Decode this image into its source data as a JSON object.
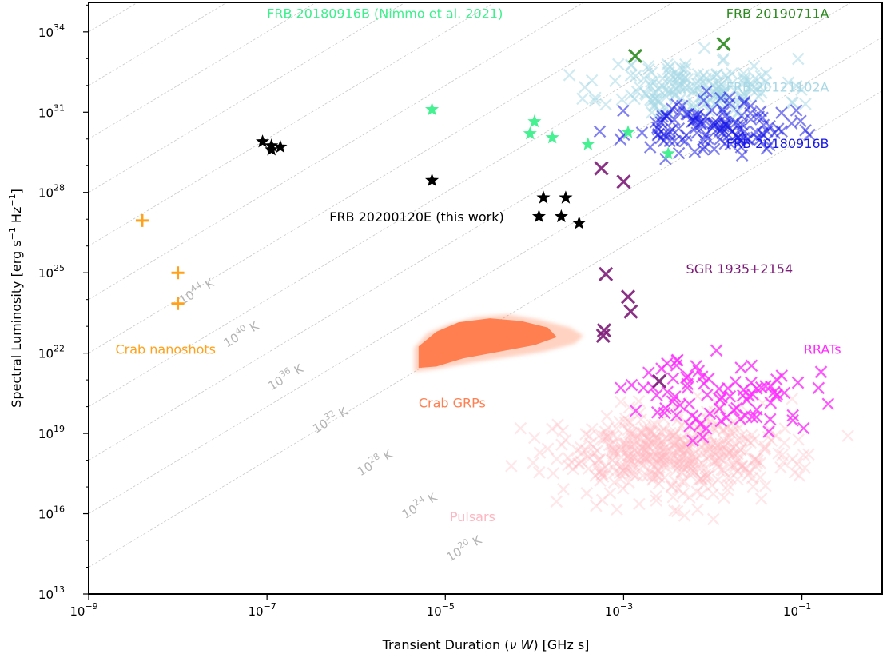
{
  "chart_data": {
    "type": "scatter",
    "xlabel": "Transient Duration (ν W) [GHz s]",
    "ylabel": "Spectral Luminosity [erg s⁻¹ Hz⁻¹]",
    "xscale": "log",
    "yscale": "log",
    "xlim_exp": [
      -9,
      -0.1
    ],
    "ylim_exp": [
      13,
      35.1
    ],
    "grid": false,
    "legend": "none (inline text labels)",
    "x_ticks": [
      {
        "exp": -9,
        "base": "10",
        "sup": "−9"
      },
      {
        "exp": -7,
        "base": "10",
        "sup": "−7"
      },
      {
        "exp": -5,
        "base": "10",
        "sup": "−5"
      },
      {
        "exp": -3,
        "base": "10",
        "sup": "−3"
      },
      {
        "exp": -1,
        "base": "10",
        "sup": "−1"
      }
    ],
    "y_ticks": [
      {
        "exp": 13,
        "base": "10",
        "sup": "13"
      },
      {
        "exp": 16,
        "base": "10",
        "sup": "16"
      },
      {
        "exp": 19,
        "base": "10",
        "sup": "19"
      },
      {
        "exp": 22,
        "base": "10",
        "sup": "22"
      },
      {
        "exp": 25,
        "base": "10",
        "sup": "25"
      },
      {
        "exp": 28,
        "base": "10",
        "sup": "28"
      },
      {
        "exp": 31,
        "base": "10",
        "sup": "31"
      },
      {
        "exp": 34,
        "base": "10",
        "sup": "34"
      }
    ],
    "isotherms": [
      {
        "label": "10",
        "sup": "20",
        "unit": "K",
        "tb_exp": 20
      },
      {
        "label": "10",
        "sup": "24",
        "unit": "K",
        "tb_exp": 24
      },
      {
        "label": "10",
        "sup": "28",
        "unit": "K",
        "tb_exp": 28
      },
      {
        "label": "10",
        "sup": "32",
        "unit": "K",
        "tb_exp": 32
      },
      {
        "label": "10",
        "sup": "36",
        "unit": "K",
        "tb_exp": 36
      },
      {
        "label": "10",
        "sup": "40",
        "unit": "K",
        "tb_exp": 40
      },
      {
        "label": "10",
        "sup": "44",
        "unit": "K",
        "tb_exp": 44
      }
    ],
    "series": [
      {
        "name": "FRB 20200120E (this work)",
        "marker": "star",
        "color": "#000000",
        "alpha": 1,
        "points": [
          [
            -7.05,
            29.9
          ],
          [
            -6.95,
            29.6
          ],
          [
            -6.85,
            29.7
          ],
          [
            -5.15,
            28.45
          ],
          [
            -3.9,
            27.8
          ],
          [
            -3.95,
            27.1
          ],
          [
            -3.7,
            27.1
          ],
          [
            -3.65,
            27.8
          ],
          [
            -3.5,
            26.85
          ],
          [
            -6.95,
            29.75
          ]
        ]
      },
      {
        "name": "FRB 20180916B (Nimmo et al. 2021)",
        "marker": "star",
        "color": "#3cf08c",
        "alpha": 0.95,
        "points": [
          [
            -5.15,
            31.1
          ],
          [
            -4.0,
            30.65
          ],
          [
            -4.05,
            30.2
          ],
          [
            -3.8,
            30.05
          ],
          [
            -3.4,
            29.8
          ],
          [
            -2.95,
            30.25
          ],
          [
            -2.5,
            29.45
          ]
        ]
      },
      {
        "name": "FRB 20190711A",
        "marker": "x",
        "color": "#2b8a1e",
        "alpha": 0.9,
        "points": [
          [
            -2.87,
            33.1
          ],
          [
            -1.88,
            33.55
          ]
        ]
      },
      {
        "name": "SGR 1935+2154",
        "marker": "x",
        "color": "#7d1b78",
        "alpha": 0.9,
        "points": [
          [
            -3.25,
            28.9
          ],
          [
            -3.0,
            28.4
          ],
          [
            -3.2,
            24.95
          ],
          [
            -2.95,
            24.1
          ],
          [
            -2.92,
            23.55
          ],
          [
            -3.22,
            22.85
          ],
          [
            -3.23,
            22.65
          ],
          [
            -2.6,
            20.95
          ]
        ]
      },
      {
        "name": "FRB 20121102A",
        "marker": "x",
        "color": "#a8d8e6",
        "alpha": 0.55,
        "cloud": {
          "cx": -2.2,
          "cy": 31.9,
          "sx": 0.5,
          "sy": 0.55,
          "n": 170,
          "seed": 11
        }
      },
      {
        "name": "FRB 20180916B",
        "marker": "x",
        "color": "#1a1ae6",
        "alpha": 0.55,
        "cloud": {
          "cx": -2.05,
          "cy": 30.4,
          "sx": 0.45,
          "sy": 0.45,
          "n": 130,
          "seed": 23
        }
      },
      {
        "name": "RRATs",
        "marker": "x",
        "color": "#ff2bff",
        "alpha": 0.8,
        "cloud": {
          "cx": -1.85,
          "cy": 20.4,
          "sx": 0.5,
          "sy": 0.7,
          "n": 85,
          "seed": 37
        }
      },
      {
        "name": "Pulsars",
        "marker": "x",
        "color": "#ffb6c1",
        "alpha": 0.35,
        "cloud": {
          "cx": -2.4,
          "cy": 18.2,
          "sx": 0.7,
          "sy": 0.8,
          "n": 480,
          "seed": 53
        }
      },
      {
        "name": "Crab GRPs",
        "marker": "blob",
        "color": "#ff7f50",
        "alpha": 1
      },
      {
        "name": "Crab nanoshots",
        "marker": "plus",
        "color": "#ffa11a",
        "alpha": 1,
        "points": [
          [
            -8.4,
            26.95
          ],
          [
            -8.0,
            25.0
          ],
          [
            -8.0,
            23.85
          ]
        ]
      }
    ],
    "labels": [
      {
        "key": "frb_nimmo",
        "text": "FRB 20180916B (Nimmo et al. 2021)",
        "color": "#3cf08c",
        "at": [
          -7.0,
          34.7
        ]
      },
      {
        "key": "frb_190711",
        "text": "FRB 20190711A",
        "color": "#2b8a1e",
        "at": [
          -1.85,
          34.7
        ]
      },
      {
        "key": "frb_121102",
        "text": "FRB 20121102A",
        "color": "#a8d8e6",
        "at": [
          -1.85,
          31.95
        ]
      },
      {
        "key": "frb_180916",
        "text": "FRB 20180916B",
        "color": "#1a1ae6",
        "at": [
          -1.85,
          29.85
        ]
      },
      {
        "key": "frb_200120",
        "text": "FRB 20200120E (this work)",
        "color": "#000000",
        "at": [
          -6.3,
          27.1
        ]
      },
      {
        "key": "sgr",
        "text": "SGR 1935+2154",
        "color": "#7d1b78",
        "at": [
          -2.3,
          25.15
        ]
      },
      {
        "key": "crab_nano",
        "text": "Crab nanoshots",
        "color": "#ffa11a",
        "at": [
          -8.7,
          22.15
        ]
      },
      {
        "key": "crab_grp",
        "text": "Crab GRPs",
        "color": "#ff7f50",
        "at": [
          -5.3,
          20.15
        ]
      },
      {
        "key": "rrats",
        "text": "RRATs",
        "color": "#ff2bff",
        "at": [
          -0.98,
          22.15
        ]
      },
      {
        "key": "pulsars",
        "text": "Pulsars",
        "color": "#ffb6c1",
        "at": [
          -4.95,
          15.9
        ]
      }
    ]
  }
}
